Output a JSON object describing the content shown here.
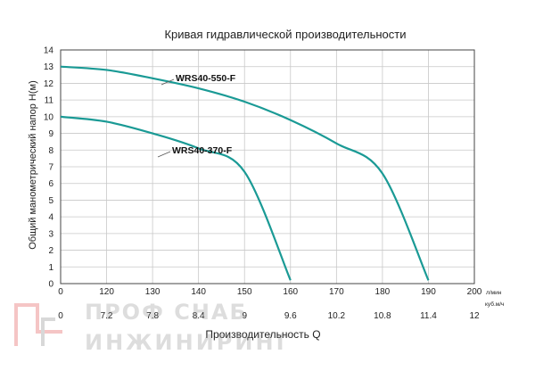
{
  "chart_data": {
    "type": "line",
    "title": "Кривая гидравлической производительности",
    "ylabel": "Общий манометрический напор H(м)",
    "xlabel": "Производительность Q",
    "ylim": [
      0,
      14
    ],
    "yticks": [
      "0",
      "1",
      "2",
      "3",
      "4",
      "5",
      "6",
      "7",
      "8",
      "9",
      "10",
      "11",
      "12",
      "13",
      "14"
    ],
    "xticks_lpm": [
      "0",
      "120",
      "130",
      "140",
      "150",
      "160",
      "170",
      "180",
      "190",
      "200"
    ],
    "x_unit_lpm": "л/мин",
    "xticks_m3h": [
      "0",
      "7.2",
      "7.8",
      "8.4",
      "9",
      "9.6",
      "10.2",
      "10.8",
      "11.4",
      "12"
    ],
    "x_unit_m3h": "куб.м/ч",
    "grid": true,
    "series": [
      {
        "name": "WRS40-550-F",
        "color": "#1a9a95",
        "points": [
          [
            0,
            13.0
          ],
          [
            120,
            12.8
          ],
          [
            130,
            12.3
          ],
          [
            140,
            11.7
          ],
          [
            150,
            10.9
          ],
          [
            160,
            9.8
          ],
          [
            170,
            8.4
          ],
          [
            180,
            6.6
          ],
          [
            190,
            0.2
          ]
        ]
      },
      {
        "name": "WRS40-370-F",
        "color": "#1a9a95",
        "points": [
          [
            0,
            10.0
          ],
          [
            120,
            9.7
          ],
          [
            130,
            9.0
          ],
          [
            140,
            8.1
          ],
          [
            150,
            6.7
          ],
          [
            160,
            0.2
          ]
        ]
      }
    ]
  },
  "watermark": {
    "line1": "ПРОФ СНАБ",
    "line2": "ИНЖИНИРИНГ"
  }
}
